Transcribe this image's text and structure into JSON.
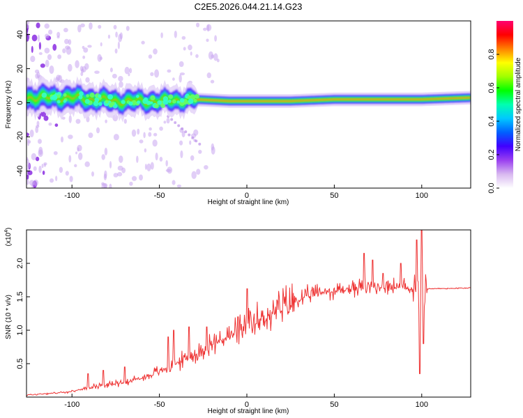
{
  "title": "C2E5.2026.044.21.14.G23",
  "chart_data": [
    {
      "type": "heatmap",
      "xlabel": "Height of straight line (km)",
      "ylabel": "Frequency (Hz)",
      "xlim": [
        -126,
        128
      ],
      "ylim": [
        -50,
        48
      ],
      "xticks": [
        -100,
        -50,
        0,
        50,
        100
      ],
      "yticks": [
        -40,
        -20,
        0,
        20,
        40
      ],
      "colorbar": {
        "label": "Normalized spectral amplitude",
        "range": [
          0,
          1
        ],
        "ticks": [
          0.0,
          0.2,
          0.4,
          0.6,
          0.8
        ],
        "tick_labels": [
          "0.0",
          "0.2",
          "0.4",
          "0.6",
          "0.8"
        ],
        "colors": [
          "#ffffff",
          "#d8b8f0",
          "#9a40f0",
          "#4000ff",
          "#0060ff",
          "#00c8ff",
          "#00ffb0",
          "#00ff00",
          "#a0ff00",
          "#ffff00",
          "#ff8000",
          "#ff0000",
          "#ff0070"
        ]
      },
      "band": {
        "center_hz": [
          [
            -126,
            3
          ],
          [
            -100,
            3
          ],
          [
            -75,
            1
          ],
          [
            -50,
            1
          ],
          [
            -30,
            2
          ],
          [
            -10,
            1
          ],
          [
            0,
            1
          ],
          [
            25,
            1
          ],
          [
            50,
            2
          ],
          [
            75,
            2
          ],
          [
            100,
            2
          ],
          [
            128,
            3
          ]
        ],
        "halfwidth_hz": [
          [
            -126,
            6
          ],
          [
            -30,
            5
          ],
          [
            -28,
            2.5
          ],
          [
            128,
            2.5
          ]
        ]
      }
    },
    {
      "type": "line",
      "xlabel": "Height of straight line (km)",
      "ylabel": "SNR (10 * v/v)",
      "yscale_note": "(x10",
      "yscale_exp": "4",
      "xlim": [
        -126,
        128
      ],
      "ylim": [
        0,
        2.5
      ],
      "xticks": [
        -100,
        -50,
        0,
        50,
        100
      ],
      "yticks": [
        0.5,
        1.0,
        1.5,
        2.0
      ],
      "ytick_labels": [
        "0.5",
        "1.0",
        "1.5",
        "2.0"
      ],
      "series": [
        {
          "name": "SNR",
          "color": "#ee3333",
          "trend": [
            [
              -126,
              0.03
            ],
            [
              -100,
              0.08
            ],
            [
              -90,
              0.15
            ],
            [
              -75,
              0.2
            ],
            [
              -60,
              0.28
            ],
            [
              -50,
              0.38
            ],
            [
              -40,
              0.5
            ],
            [
              -30,
              0.62
            ],
            [
              -20,
              0.78
            ],
            [
              -10,
              0.9
            ],
            [
              0,
              1.0
            ],
            [
              10,
              1.18
            ],
            [
              20,
              1.3
            ],
            [
              30,
              1.45
            ],
            [
              40,
              1.55
            ],
            [
              50,
              1.58
            ],
            [
              60,
              1.62
            ],
            [
              80,
              1.65
            ],
            [
              95,
              1.62
            ],
            [
              105,
              1.62
            ],
            [
              128,
              1.63
            ]
          ],
          "spikes": [
            [
              -91,
              0.35
            ],
            [
              -82,
              0.4
            ],
            [
              -70,
              0.45
            ],
            [
              -45,
              0.9
            ],
            [
              -42,
              1.0
            ],
            [
              -33,
              1.05
            ],
            [
              -23,
              1.05
            ],
            [
              0,
              1.62
            ],
            [
              -5,
              1.2
            ],
            [
              67,
              2.15
            ],
            [
              72,
              2.05
            ],
            [
              78,
              1.85
            ],
            [
              88,
              2.0
            ],
            [
              97,
              2.35
            ],
            [
              99,
              0.35
            ],
            [
              100,
              2.6
            ],
            [
              101,
              0.8
            ]
          ]
        }
      ]
    }
  ]
}
